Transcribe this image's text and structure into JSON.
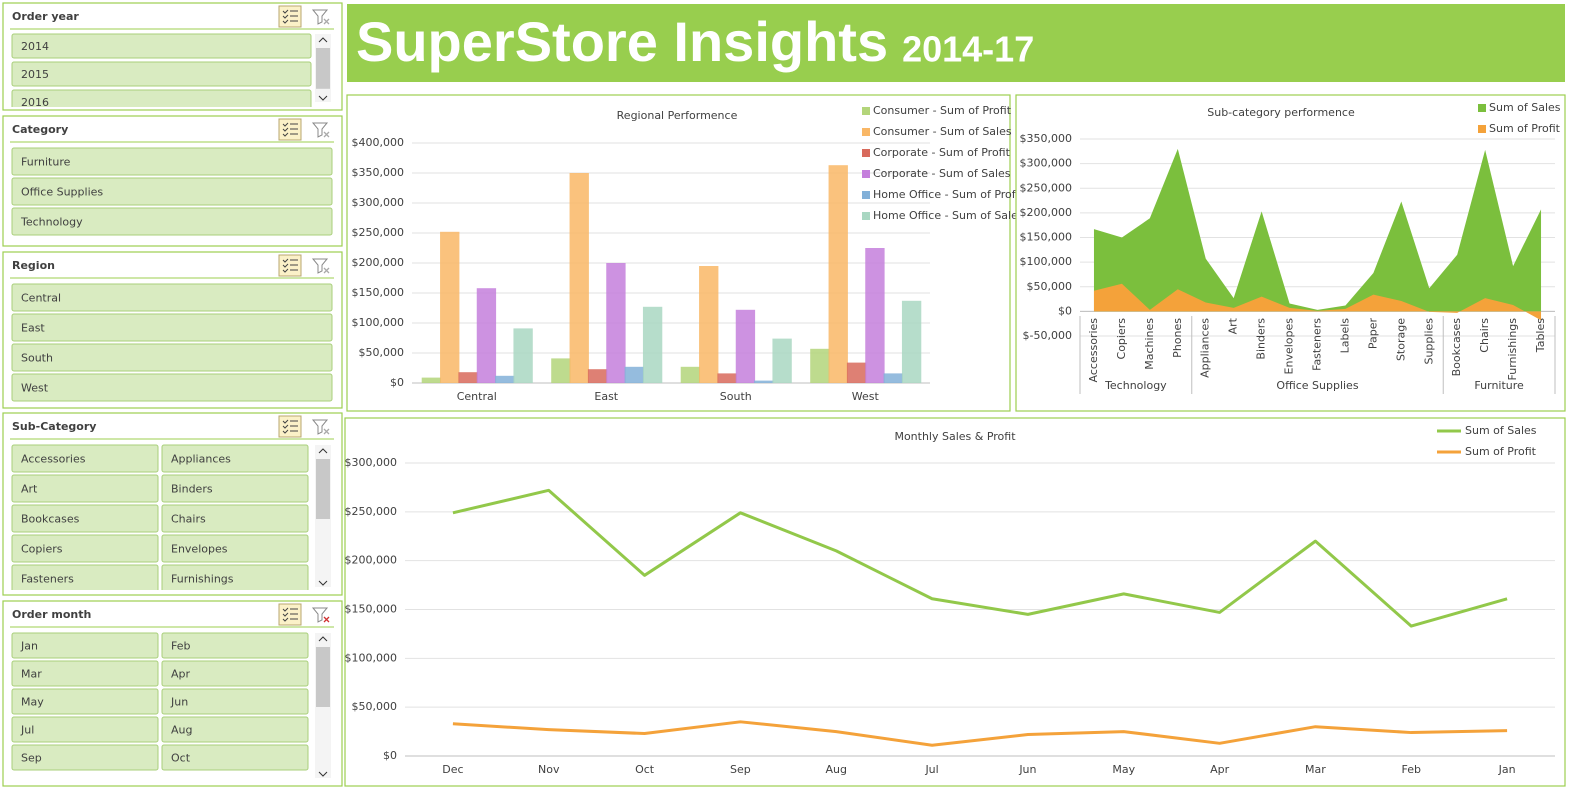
{
  "header": {
    "title": "SuperStore Insights",
    "subtitle": "2014-17"
  },
  "slicers": [
    {
      "title": "Order year",
      "items": [
        "2014",
        "2015",
        "2016"
      ]
    },
    {
      "title": "Category",
      "items": [
        "Furniture",
        "Office Supplies",
        "Technology"
      ]
    },
    {
      "title": "Region",
      "items": [
        "Central",
        "East",
        "South",
        "West"
      ]
    },
    {
      "title": "Sub-Category",
      "items": [
        "Accessories",
        "Appliances",
        "Art",
        "Binders",
        "Bookcases",
        "Chairs",
        "Copiers",
        "Envelopes",
        "Fasteners",
        "Furnishings"
      ]
    },
    {
      "title": "Order month",
      "items": [
        "Jan",
        "Feb",
        "Mar",
        "Apr",
        "May",
        "Jun",
        "Jul",
        "Aug",
        "Sep",
        "Oct"
      ]
    }
  ],
  "chart_data": [
    {
      "type": "bar",
      "title": "Regional Performence",
      "categories": [
        "Central",
        "East",
        "South",
        "West"
      ],
      "series": [
        {
          "name": "Consumer - Sum of Profit",
          "color": "#b3d57a",
          "values": [
            9000,
            41000,
            27000,
            57000
          ]
        },
        {
          "name": "Consumer - Sum of Sales",
          "color": "#f9b766",
          "values": [
            252000,
            350000,
            195000,
            363000
          ]
        },
        {
          "name": "Corporate - Sum of Profit",
          "color": "#d86a5c",
          "values": [
            18000,
            23000,
            16000,
            34000
          ]
        },
        {
          "name": "Corporate - Sum of Sales",
          "color": "#c47fdc",
          "values": [
            158000,
            200000,
            122000,
            225000
          ]
        },
        {
          "name": "Home Office - Sum of Profit",
          "color": "#82b0d8",
          "values": [
            12000,
            27000,
            4000,
            16000
          ]
        },
        {
          "name": "Home Office - Sum of Sales",
          "color": "#a9d7c2",
          "values": [
            91000,
            127000,
            74000,
            137000
          ]
        }
      ],
      "ylim": [
        0,
        400000
      ],
      "yticks": [
        {
          "value": 0,
          "label": "$0"
        },
        {
          "value": 50000,
          "label": "$50,000"
        },
        {
          "value": 100000,
          "label": "$100,000"
        },
        {
          "value": 150000,
          "label": "$150,000"
        },
        {
          "value": 200000,
          "label": "$200,000"
        },
        {
          "value": 250000,
          "label": "$250,000"
        },
        {
          "value": 300000,
          "label": "$300,000"
        },
        {
          "value": 350000,
          "label": "$350,000"
        },
        {
          "value": 400000,
          "label": "$400,000"
        }
      ],
      "grid": true
    },
    {
      "type": "area",
      "title": "Sub-category performence",
      "category_groups": [
        {
          "name": "Technology",
          "categories": [
            "Accessories",
            "Copiers",
            "Machines",
            "Phones"
          ]
        },
        {
          "name": "Office Supplies",
          "categories": [
            "Appliances",
            "Art",
            "Binders",
            "Envelopes",
            "Fasteners",
            "Labels",
            "Paper",
            "Storage",
            "Supplies"
          ]
        },
        {
          "name": "Furniture",
          "categories": [
            "Bookcases",
            "Chairs",
            "Furnishings",
            "Tables"
          ]
        }
      ],
      "series": [
        {
          "name": "Sum of Sales",
          "color": "#7bbf3d",
          "values": [
            167000,
            150000,
            189000,
            330000,
            107000,
            27000,
            203000,
            16000,
            3000,
            12000,
            78000,
            223000,
            47000,
            115000,
            328000,
            92000,
            207000
          ]
        },
        {
          "name": "Sum of Profit",
          "color": "#f4a23a",
          "values": [
            42000,
            56000,
            3000,
            45000,
            18000,
            7000,
            30000,
            7000,
            1000,
            5000,
            34000,
            21000,
            -1000,
            -3000,
            27000,
            13000,
            -18000
          ]
        }
      ],
      "ylim": [
        -50000,
        350000
      ],
      "yticks": [
        {
          "value": -50000,
          "label": "$-50,000"
        },
        {
          "value": 0,
          "label": "$0"
        },
        {
          "value": 50000,
          "label": "$50,000"
        },
        {
          "value": 100000,
          "label": "$100,000"
        },
        {
          "value": 150000,
          "label": "$150,000"
        },
        {
          "value": 200000,
          "label": "$200,000"
        },
        {
          "value": 250000,
          "label": "$250,000"
        },
        {
          "value": 300000,
          "label": "$300,000"
        },
        {
          "value": 350000,
          "label": "$350,000"
        }
      ],
      "grid": true
    },
    {
      "type": "line",
      "title": "Monthly Sales & Profit",
      "categories": [
        "Dec",
        "Nov",
        "Oct",
        "Sep",
        "Aug",
        "Jul",
        "Jun",
        "May",
        "Apr",
        "Mar",
        "Feb",
        "Jan"
      ],
      "series": [
        {
          "name": "Sum of Sales",
          "color": "#92c84a",
          "values": [
            249000,
            272000,
            185000,
            249000,
            210000,
            161000,
            145000,
            166000,
            147000,
            220000,
            133000,
            161000
          ]
        },
        {
          "name": "Sum of Profit",
          "color": "#f4a23a",
          "values": [
            33000,
            27000,
            23000,
            35000,
            25000,
            11000,
            22000,
            25000,
            13000,
            30000,
            24000,
            26000
          ]
        }
      ],
      "ylim": [
        0,
        300000
      ],
      "yticks": [
        {
          "value": 0,
          "label": "$0"
        },
        {
          "value": 50000,
          "label": "$50,000"
        },
        {
          "value": 100000,
          "label": "$100,000"
        },
        {
          "value": 150000,
          "label": "$150,000"
        },
        {
          "value": 200000,
          "label": "$200,000"
        },
        {
          "value": 250000,
          "label": "$250,000"
        },
        {
          "value": 300000,
          "label": "$300,000"
        }
      ],
      "grid": true
    }
  ]
}
